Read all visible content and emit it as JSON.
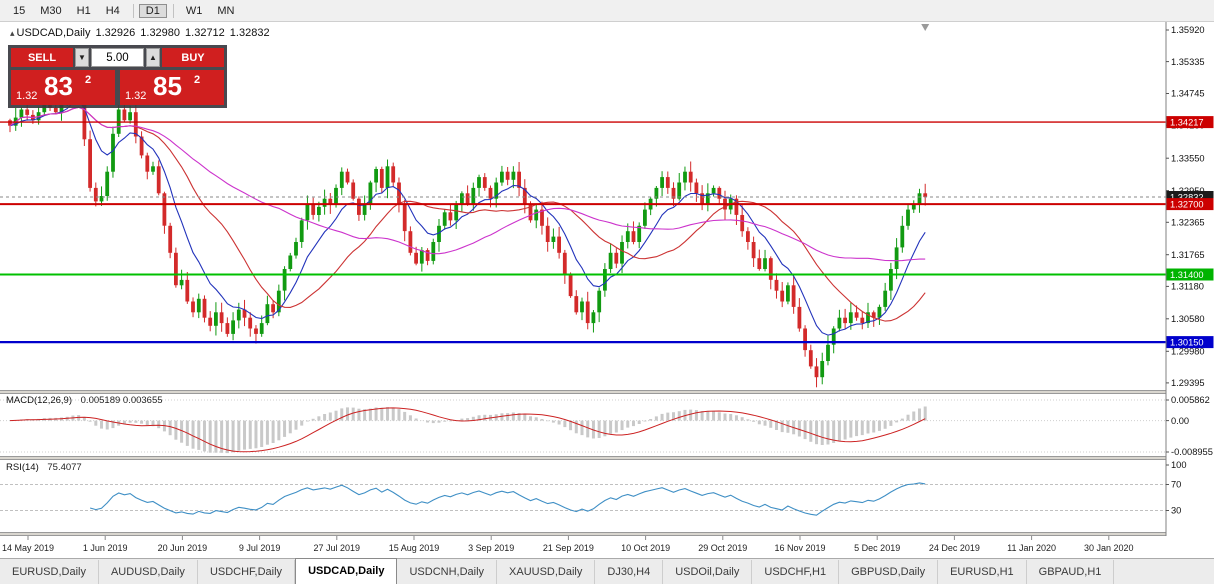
{
  "toolbar": {
    "timeframes": [
      "15",
      "M30",
      "H1",
      "H4",
      "D1",
      "W1",
      "MN"
    ],
    "active": "D1"
  },
  "icons": {
    "symbol_marker": "▴",
    "lot_down_arrow": "▼",
    "lot_up_arrow": "▲"
  },
  "chart": {
    "symbol_label": "USDCAD,Daily",
    "ohlc": {
      "open": "1.32926",
      "high": "1.32980",
      "low": "1.32712",
      "close": "1.32832"
    },
    "trade_panel": {
      "sell_label": "SELL",
      "buy_label": "BUY",
      "lot": "5.00",
      "sell_price": {
        "prefix": "1.32",
        "big": "83",
        "sup": "2"
      },
      "buy_price": {
        "prefix": "1.32",
        "big": "85",
        "sup": "2"
      }
    },
    "price_scale": {
      "ticks": [
        "1.35920",
        "1.35335",
        "1.34745",
        "1.34160",
        "1.33550",
        "1.32950",
        "1.32365",
        "1.31765",
        "1.31180",
        "1.30580",
        "1.29980",
        "1.29395"
      ],
      "badges": [
        {
          "value": "1.34217",
          "price": 1.34217,
          "color": "#cc0000"
        },
        {
          "value": "1.32832",
          "price": 1.32832,
          "color": "#1b1b1b"
        },
        {
          "value": "1.32700",
          "price": 1.327,
          "color": "#cc0000"
        },
        {
          "value": "1.31400",
          "price": 1.314,
          "color": "#00b300"
        },
        {
          "value": "1.30150",
          "price": 1.3015,
          "color": "#0000cc"
        }
      ]
    },
    "hlines": [
      {
        "price": 1.34217,
        "color": "#cc0000",
        "width": 1.4
      },
      {
        "price": 1.327,
        "color": "#cc0000",
        "width": 2
      },
      {
        "price": 1.314,
        "color": "#00c000",
        "width": 2
      },
      {
        "price": 1.3015,
        "color": "#0000cc",
        "width": 2.2
      }
    ],
    "bid_line": {
      "price": 1.32832,
      "color": "#888888"
    }
  },
  "macd_panel": {
    "label": "MACD(12,26,9)",
    "values": "0.005189 0.003655",
    "ticks": [
      "0.005862",
      "0.00",
      "-0.008955"
    ]
  },
  "rsi_panel": {
    "label": "RSI(14)",
    "value": "75.4077",
    "ticks": [
      "100",
      "70",
      "30"
    ]
  },
  "date_axis": {
    "labels": [
      "14 May 2019",
      "1 Jun 2019",
      "20 Jun 2019",
      "9 Jul 2019",
      "27 Jul 2019",
      "15 Aug 2019",
      "3 Sep 2019",
      "21 Sep 2019",
      "10 Oct 2019",
      "29 Oct 2019",
      "16 Nov 2019",
      "5 Dec 2019",
      "24 Dec 2019",
      "11 Jan 2020",
      "30 Jan 2020"
    ]
  },
  "tabs": {
    "items": [
      "EURUSD,Daily",
      "AUDUSD,Daily",
      "USDCHF,Daily",
      "USDCAD,Daily",
      "USDCNH,Daily",
      "XAUUSD,Daily",
      "DJ30,H4",
      "USDOil,Daily",
      "USDCHF,H1",
      "GBPUSD,Daily",
      "EURUSD,H1",
      "GBPAUD,H1"
    ],
    "active": "USDCAD,Daily"
  },
  "colors": {
    "candle_up": "#119a11",
    "candle_down": "#d32a2a",
    "ma_fast": "#2233bb",
    "ma_mid": "#cc3333",
    "ma_slow": "#cc33cc",
    "macd_hist": "#c9c9c9",
    "macd_signal": "#cc2222",
    "rsi_line": "#3f8fc5",
    "trade_red": "#d01f1f"
  },
  "chart_data": {
    "type": "candlestick",
    "symbol": "USDCAD",
    "timeframe": "Daily",
    "title": "USDCAD,Daily",
    "last_ohlc": {
      "open": 1.32926,
      "high": 1.3298,
      "low": 1.32712,
      "close": 1.32832
    },
    "ylim": [
      1.29395,
      1.3592
    ],
    "price_ticks": [
      1.3592,
      1.35335,
      1.34745,
      1.3416,
      1.3355,
      1.3295,
      1.32365,
      1.31765,
      1.3118,
      1.3058,
      1.2998,
      1.29395
    ],
    "x_labels": [
      "14 May 2019",
      "1 Jun 2019",
      "20 Jun 2019",
      "9 Jul 2019",
      "27 Jul 2019",
      "15 Aug 2019",
      "3 Sep 2019",
      "21 Sep 2019",
      "10 Oct 2019",
      "29 Oct 2019",
      "16 Nov 2019",
      "5 Dec 2019",
      "24 Dec 2019",
      "11 Jan 2020",
      "30 Jan 2020"
    ],
    "bars": 161,
    "first_open": 1.3425,
    "closes": [
      1.3415,
      1.343,
      1.3445,
      1.3435,
      1.3425,
      1.344,
      1.3455,
      1.3448,
      1.344,
      1.3455,
      1.347,
      1.35,
      1.348,
      1.339,
      1.33,
      1.3275,
      1.3285,
      1.333,
      1.34,
      1.3445,
      1.3425,
      1.344,
      1.3395,
      1.336,
      1.333,
      1.334,
      1.329,
      1.323,
      1.318,
      1.312,
      1.313,
      1.309,
      1.307,
      1.3095,
      1.306,
      1.3045,
      1.307,
      1.305,
      1.303,
      1.3055,
      1.3075,
      1.306,
      1.304,
      1.303,
      1.305,
      1.3085,
      1.307,
      1.311,
      1.315,
      1.3175,
      1.32,
      1.324,
      1.327,
      1.325,
      1.3265,
      1.328,
      1.327,
      1.33,
      1.333,
      1.331,
      1.328,
      1.325,
      1.327,
      1.331,
      1.3335,
      1.33,
      1.334,
      1.331,
      1.327,
      1.322,
      1.318,
      1.316,
      1.3185,
      1.3165,
      1.32,
      1.323,
      1.3255,
      1.324,
      1.327,
      1.329,
      1.327,
      1.33,
      1.332,
      1.33,
      1.328,
      1.331,
      1.333,
      1.3315,
      1.333,
      1.33,
      1.327,
      1.324,
      1.326,
      1.323,
      1.32,
      1.321,
      1.318,
      1.314,
      1.31,
      1.307,
      1.309,
      1.305,
      1.307,
      1.311,
      1.315,
      1.318,
      1.316,
      1.32,
      1.322,
      1.32,
      1.323,
      1.326,
      1.328,
      1.33,
      1.332,
      1.33,
      1.328,
      1.331,
      1.333,
      1.331,
      1.329,
      1.327,
      1.329,
      1.33,
      1.328,
      1.326,
      1.328,
      1.325,
      1.322,
      1.32,
      1.317,
      1.315,
      1.317,
      1.313,
      1.311,
      1.309,
      1.312,
      1.308,
      1.304,
      1.3,
      1.297,
      1.295,
      1.298,
      1.301,
      1.304,
      1.306,
      1.305,
      1.307,
      1.306,
      1.305,
      1.307,
      1.306,
      1.308,
      1.311,
      1.315,
      1.319,
      1.323,
      1.326,
      1.327,
      1.329,
      1.3283
    ],
    "horizontal_levels": [
      1.34217,
      1.327,
      1.314,
      1.3015
    ],
    "current_bid": 1.32832,
    "overlays": [
      {
        "name": "MA fast",
        "style": "blue line"
      },
      {
        "name": "MA medium",
        "style": "red line"
      },
      {
        "name": "MA slow",
        "style": "magenta line"
      }
    ],
    "indicators": [
      {
        "name": "MACD",
        "params": [
          12,
          26,
          9
        ],
        "last_values": [
          0.005189,
          0.003655
        ],
        "scale": [
          0.005862,
          0.0,
          -0.008955
        ]
      },
      {
        "name": "RSI",
        "params": [
          14
        ],
        "last_value": 75.4077,
        "levels": [
          70,
          30
        ],
        "scale": [
          100,
          70,
          30
        ]
      }
    ],
    "legend_position": "none",
    "grid": false
  }
}
